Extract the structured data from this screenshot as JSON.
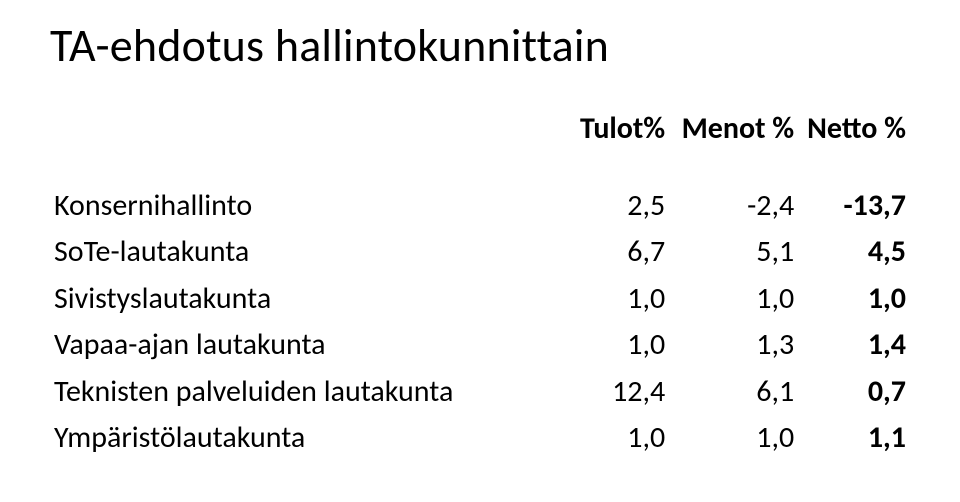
{
  "title": "TA-ehdotus hallintokunnittain",
  "headers": {
    "col1": "Tulot%",
    "col2": "Menot %",
    "col3": "Netto %"
  },
  "rows": [
    {
      "label": "Konsernihallinto",
      "tulot": "2,5",
      "menot": "-2,4",
      "netto": "-13,7"
    },
    {
      "label": "SoTe-lautakunta",
      "tulot": "6,7",
      "menot": "5,1",
      "netto": "4,5"
    },
    {
      "label": "Sivistyslautakunta",
      "tulot": "1,0",
      "menot": "1,0",
      "netto": "1,0"
    },
    {
      "label": "Vapaa-ajan lautakunta",
      "tulot": "1,0",
      "menot": "1,3",
      "netto": "1,4"
    },
    {
      "label": "Teknisten palveluiden lautakunta",
      "tulot": "12,4",
      "menot": "6,1",
      "netto": "0,7"
    },
    {
      "label": "Ympäristölautakunta",
      "tulot": "1,0",
      "menot": "1,0",
      "netto": "1,1"
    }
  ]
}
